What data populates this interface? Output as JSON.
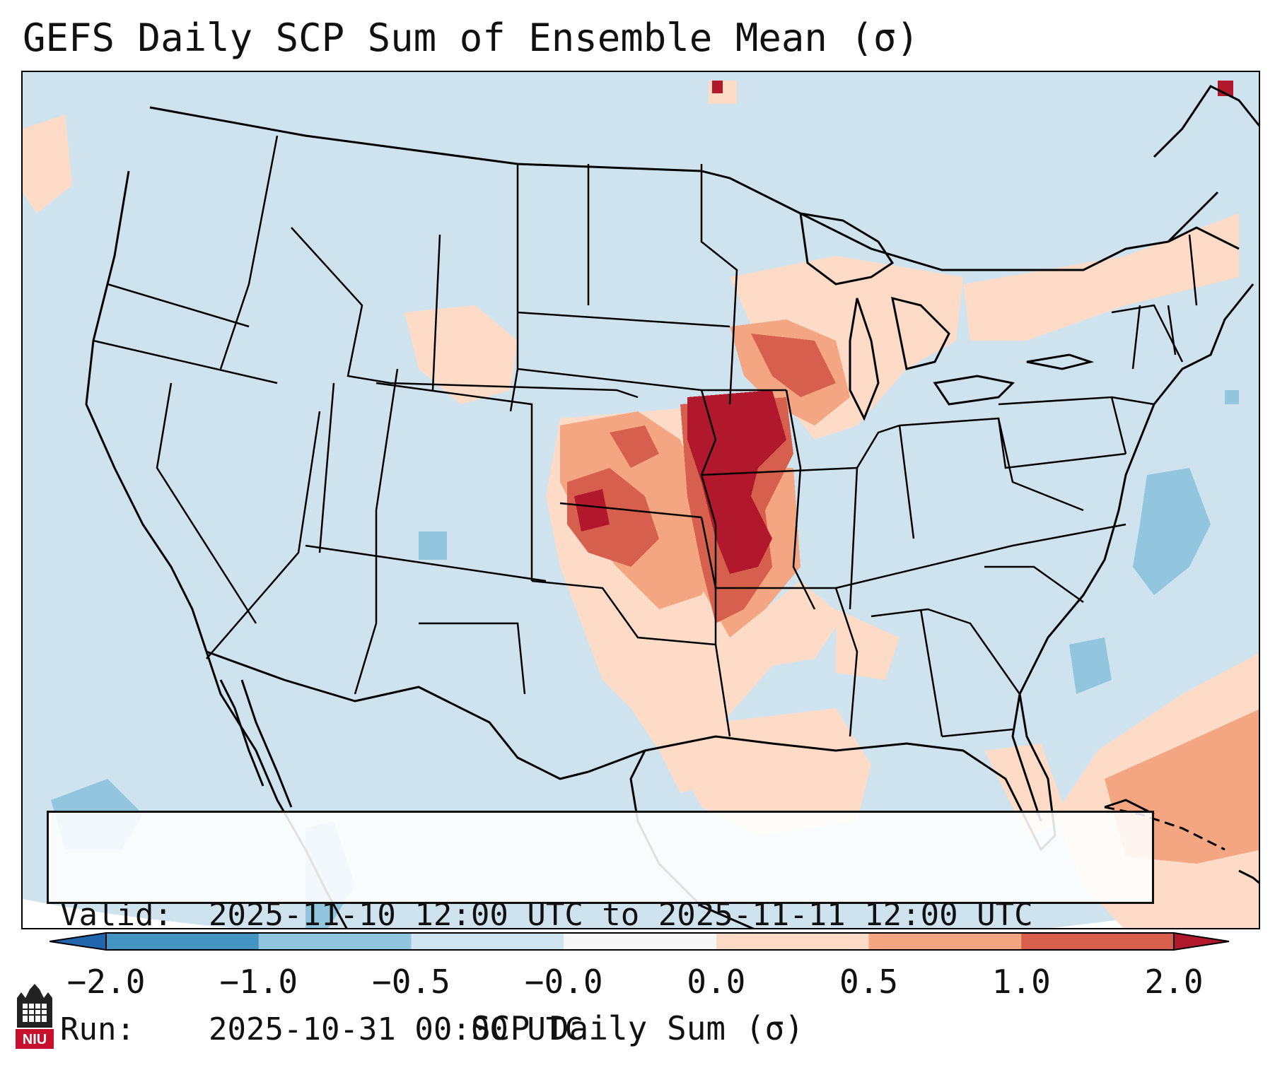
{
  "title": "GEFS Daily SCP Sum of Ensemble Mean (σ)",
  "info": {
    "valid_label": "Valid:",
    "valid_value": "2025-11-10 12:00 UTC to 2025-11-11 12:00 UTC",
    "run_label": "Run:",
    "run_value": "2025-10-31 00:00 UTC"
  },
  "colorbar": {
    "label": "SCP Daily Sum (σ)",
    "ticks": [
      "−2.0",
      "−1.0",
      "−0.5",
      "−0.0",
      "0.0",
      "0.5",
      "1.0",
      "2.0"
    ],
    "bins": [
      {
        "range": "-2.0 to -1.0",
        "color": "#4393c3"
      },
      {
        "range": "-1.0 to -0.5",
        "color": "#92c5de"
      },
      {
        "range": "-0.5 to -0.0",
        "color": "#d1e5f0"
      },
      {
        "range": "-0.0 to 0.0",
        "color": "#f7f7f7"
      },
      {
        "range": "0.0 to 0.5",
        "color": "#fddbc7"
      },
      {
        "range": "0.5 to 1.0",
        "color": "#f4a582"
      },
      {
        "range": "1.0 to 2.0",
        "color": "#d6604d"
      }
    ],
    "under_color": "#2166ac",
    "over_color": "#b2182b"
  },
  "logo": {
    "text": "NIU"
  },
  "colors": {
    "background": "#cfe3ee",
    "border": "#000000",
    "land_lines": "#000000"
  }
}
